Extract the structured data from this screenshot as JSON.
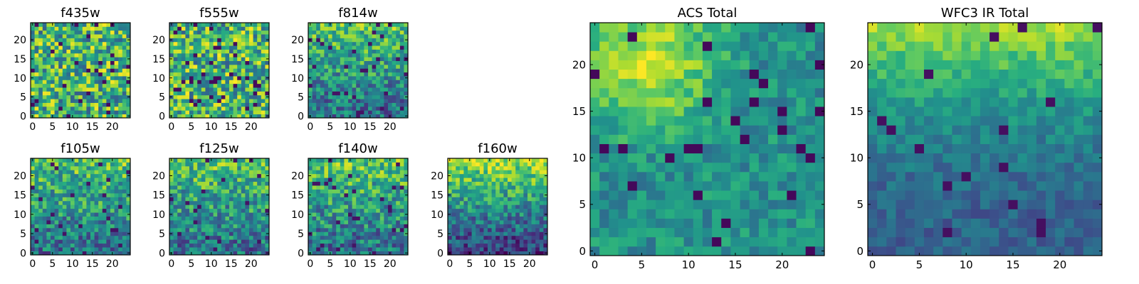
{
  "chart_data": [
    {
      "type": "heatmap",
      "title": "f435w",
      "grid": false,
      "xlim": [
        0,
        25
      ],
      "ylim": [
        0,
        25
      ],
      "xticks": [
        0,
        5,
        10,
        15,
        20
      ],
      "yticks": [
        0,
        5,
        10,
        15,
        20
      ],
      "pattern": "noise",
      "colormap": "viridis"
    },
    {
      "type": "heatmap",
      "title": "f555w",
      "grid": false,
      "xlim": [
        0,
        25
      ],
      "ylim": [
        0,
        25
      ],
      "xticks": [
        0,
        5,
        10,
        15,
        20
      ],
      "yticks": [
        0,
        5,
        10,
        15,
        20
      ],
      "pattern": "noise",
      "colormap": "viridis"
    },
    {
      "type": "heatmap",
      "title": "f814w",
      "grid": false,
      "xlim": [
        0,
        25
      ],
      "ylim": [
        0,
        25
      ],
      "xticks": [
        0,
        5,
        10,
        15,
        20
      ],
      "yticks": [
        0,
        5,
        10,
        15,
        20
      ],
      "pattern": "bright-top",
      "colormap": "viridis"
    },
    {
      "type": "heatmap",
      "title": "f105w",
      "grid": false,
      "xlim": [
        0,
        25
      ],
      "ylim": [
        0,
        25
      ],
      "xticks": [
        0,
        5,
        10,
        15,
        20
      ],
      "yticks": [
        0,
        5,
        10,
        15,
        20
      ],
      "pattern": "bright-top",
      "colormap": "viridis"
    },
    {
      "type": "heatmap",
      "title": "f125w",
      "grid": false,
      "xlim": [
        0,
        25
      ],
      "ylim": [
        0,
        25
      ],
      "xticks": [
        0,
        5,
        10,
        15,
        20
      ],
      "yticks": [
        0,
        5,
        10,
        15,
        20
      ],
      "pattern": "bright-top",
      "colormap": "viridis"
    },
    {
      "type": "heatmap",
      "title": "f140w",
      "grid": false,
      "xlim": [
        0,
        25
      ],
      "ylim": [
        0,
        25
      ],
      "xticks": [
        0,
        5,
        10,
        15,
        20
      ],
      "yticks": [
        0,
        5,
        10,
        15,
        20
      ],
      "pattern": "bright-top",
      "colormap": "viridis"
    },
    {
      "type": "heatmap",
      "title": "f160w",
      "grid": false,
      "xlim": [
        0,
        25
      ],
      "ylim": [
        0,
        25
      ],
      "xticks": [
        0,
        5,
        10,
        15,
        20
      ],
      "yticks": [
        0,
        5,
        10,
        15,
        20
      ],
      "pattern": "bright-top-dark-bottom",
      "colormap": "viridis"
    },
    {
      "type": "heatmap",
      "title": "ACS Total",
      "grid": false,
      "xlim": [
        0,
        25
      ],
      "ylim": [
        0,
        25
      ],
      "xticks": [
        0,
        5,
        10,
        15,
        20
      ],
      "yticks": [
        0,
        5,
        10,
        15,
        20
      ],
      "pattern": "bright-upper-left",
      "colormap": "viridis"
    },
    {
      "type": "heatmap",
      "title": "WFC3 IR Total",
      "grid": false,
      "xlim": [
        0,
        25
      ],
      "ylim": [
        0,
        25
      ],
      "xticks": [
        0,
        5,
        10,
        15,
        20
      ],
      "yticks": [
        0,
        5,
        10,
        15,
        20
      ],
      "pattern": "bright-top-gradient",
      "colormap": "viridis"
    }
  ]
}
